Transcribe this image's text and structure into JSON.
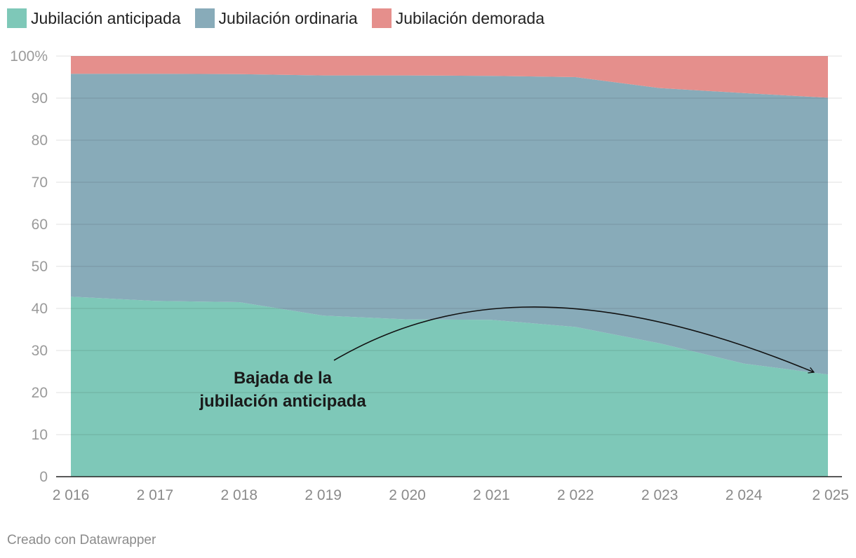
{
  "chart_data": {
    "type": "area",
    "stacked": true,
    "categories": [
      "2 016",
      "2 017",
      "2 018",
      "2 019",
      "2 020",
      "2 021",
      "2 022",
      "2 023",
      "2 024",
      "2 025"
    ],
    "series": [
      {
        "name": "Jubilación anticipada",
        "color": "#7ec8b8",
        "values": [
          42.8,
          41.8,
          41.5,
          38.3,
          37.4,
          37.3,
          35.6,
          31.7,
          26.9,
          24.3
        ]
      },
      {
        "name": "Jubilación ordinaria",
        "color": "#88abb9",
        "values": [
          53.0,
          54.0,
          54.2,
          57.1,
          58.0,
          58.0,
          59.4,
          60.7,
          64.3,
          65.8
        ]
      },
      {
        "name": "Jubilación demorada",
        "color": "#e58f8c",
        "values": [
          4.2,
          4.2,
          4.3,
          4.6,
          4.6,
          4.7,
          5.0,
          7.6,
          8.8,
          9.9
        ]
      }
    ],
    "ylim": [
      0,
      100
    ],
    "yticks": [
      0,
      10,
      20,
      30,
      40,
      50,
      60,
      70,
      80,
      90,
      100
    ],
    "ytick_labels": [
      "0",
      "10",
      "20",
      "30",
      "40",
      "50",
      "60",
      "70",
      "80",
      "90",
      "100%"
    ],
    "legend_position": "top-left",
    "annotation": {
      "lines": [
        "Bajada de la",
        "jubilación anticipada"
      ]
    }
  },
  "credit": "Creado con Datawrapper"
}
